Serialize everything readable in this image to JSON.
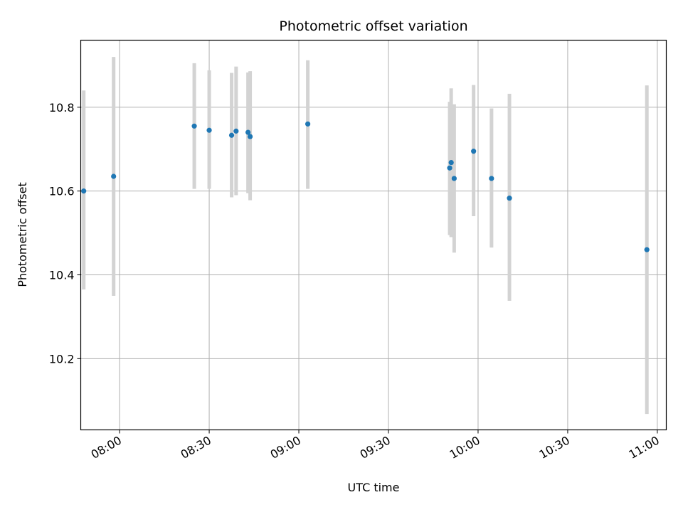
{
  "chart_data": {
    "type": "scatter",
    "title": "Photometric offset variation",
    "xlabel": "UTC time",
    "ylabel": "Photometric offset",
    "x_unit": "time of day (UTC)",
    "x_ticks": [
      "08:00",
      "08:30",
      "09:00",
      "09:30",
      "10:00",
      "10:30",
      "11:00"
    ],
    "y_ticks": [
      "10.2",
      "10.4",
      "10.6",
      "10.8"
    ],
    "xlim": [
      "07:47",
      "11:03"
    ],
    "ylim": [
      10.03,
      10.96
    ],
    "grid": true,
    "points": [
      {
        "x": "07:48",
        "y": 10.6,
        "ylow": 10.365,
        "yhigh": 10.84
      },
      {
        "x": "07:58",
        "y": 10.635,
        "ylow": 10.35,
        "yhigh": 10.92
      },
      {
        "x": "08:25",
        "y": 10.755,
        "ylow": 10.605,
        "yhigh": 10.905
      },
      {
        "x": "08:30",
        "y": 10.745,
        "ylow": 10.605,
        "yhigh": 10.888
      },
      {
        "x": "08:37.5",
        "y": 10.733,
        "ylow": 10.585,
        "yhigh": 10.882
      },
      {
        "x": "08:39",
        "y": 10.743,
        "ylow": 10.59,
        "yhigh": 10.897
      },
      {
        "x": "08:43",
        "y": 10.74,
        "ylow": 10.595,
        "yhigh": 10.883
      },
      {
        "x": "08:43.7",
        "y": 10.73,
        "ylow": 10.578,
        "yhigh": 10.886
      },
      {
        "x": "09:03",
        "y": 10.76,
        "ylow": 10.605,
        "yhigh": 10.912
      },
      {
        "x": "09:50.5",
        "y": 10.655,
        "ylow": 10.495,
        "yhigh": 10.813
      },
      {
        "x": "09:51",
        "y": 10.668,
        "ylow": 10.49,
        "yhigh": 10.845
      },
      {
        "x": "09:52",
        "y": 10.63,
        "ylow": 10.453,
        "yhigh": 10.807
      },
      {
        "x": "09:58.5",
        "y": 10.695,
        "ylow": 10.54,
        "yhigh": 10.853
      },
      {
        "x": "10:04.5",
        "y": 10.63,
        "ylow": 10.465,
        "yhigh": 10.797
      },
      {
        "x": "10:10.5",
        "y": 10.583,
        "ylow": 10.338,
        "yhigh": 10.832
      },
      {
        "x": "10:56.5",
        "y": 10.46,
        "ylow": 10.068,
        "yhigh": 10.852
      }
    ],
    "colors": {
      "marker": "#1f77b4",
      "errorbar": "#d3d3d3",
      "grid": "#b0b0b0",
      "axis": "#000000"
    }
  }
}
